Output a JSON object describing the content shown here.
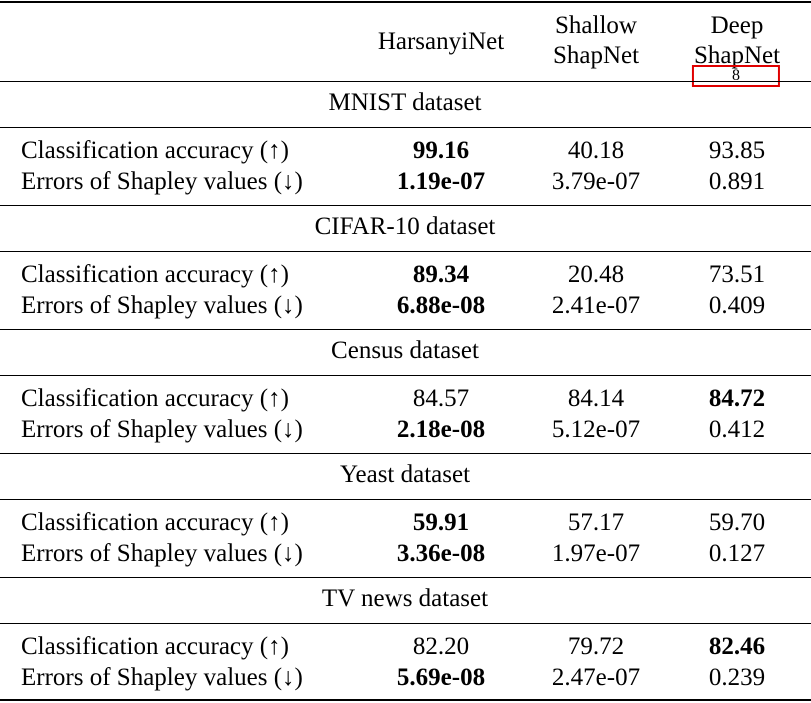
{
  "columns": {
    "col1": "HarsanyiNet",
    "col2_line1": "Shallow",
    "col2_line2": "ShapNet",
    "col3_line1": "Deep",
    "col3_line2": "ShapNet",
    "col3_footnote": "8"
  },
  "sections": [
    {
      "title": "MNIST dataset",
      "rows": [
        {
          "label": "Classification accuracy (↑)",
          "values": [
            "99.16",
            "40.18",
            "93.85"
          ],
          "bold": [
            true,
            false,
            false
          ]
        },
        {
          "label": "Errors of Shapley values (↓)",
          "values": [
            "1.19e-07",
            "3.79e-07",
            "0.891"
          ],
          "bold": [
            true,
            false,
            false
          ]
        }
      ]
    },
    {
      "title": "CIFAR-10 dataset",
      "rows": [
        {
          "label": "Classification accuracy (↑)",
          "values": [
            "89.34",
            "20.48",
            "73.51"
          ],
          "bold": [
            true,
            false,
            false
          ]
        },
        {
          "label": "Errors of Shapley values (↓)",
          "values": [
            "6.88e-08",
            "2.41e-07",
            "0.409"
          ],
          "bold": [
            true,
            false,
            false
          ]
        }
      ]
    },
    {
      "title": "Census dataset",
      "rows": [
        {
          "label": "Classification accuracy (↑)",
          "values": [
            "84.57",
            "84.14",
            "84.72"
          ],
          "bold": [
            false,
            false,
            true
          ]
        },
        {
          "label": "Errors of Shapley values (↓)",
          "values": [
            "2.18e-08",
            "5.12e-07",
            "0.412"
          ],
          "bold": [
            true,
            false,
            false
          ]
        }
      ]
    },
    {
      "title": "Yeast dataset",
      "rows": [
        {
          "label": "Classification accuracy (↑)",
          "values": [
            "59.91",
            "57.17",
            "59.70"
          ],
          "bold": [
            true,
            false,
            false
          ]
        },
        {
          "label": "Errors of Shapley values (↓)",
          "values": [
            "3.36e-08",
            "1.97e-07",
            "0.127"
          ],
          "bold": [
            true,
            false,
            false
          ]
        }
      ]
    },
    {
      "title": "TV news dataset",
      "rows": [
        {
          "label": "Classification accuracy (↑)",
          "values": [
            "82.20",
            "79.72",
            "82.46"
          ],
          "bold": [
            false,
            false,
            true
          ]
        },
        {
          "label": "Errors of Shapley values (↓)",
          "values": [
            "5.69e-08",
            "2.47e-07",
            "0.239"
          ],
          "bold": [
            true,
            false,
            false
          ]
        }
      ]
    }
  ]
}
